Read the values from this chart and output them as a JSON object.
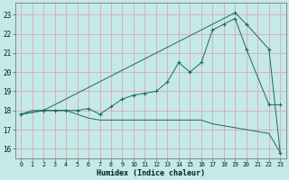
{
  "xlabel": "Humidex (Indice chaleur)",
  "bg_color": "#c5e8e8",
  "line_color": "#1a6b5a",
  "grid_color": "#dda0a0",
  "xlim": [
    -0.5,
    23.5
  ],
  "ylim": [
    15.5,
    23.6
  ],
  "yticks": [
    16,
    17,
    18,
    19,
    20,
    21,
    22,
    23
  ],
  "xticks": [
    0,
    1,
    2,
    3,
    4,
    5,
    6,
    7,
    8,
    9,
    10,
    11,
    12,
    13,
    14,
    15,
    16,
    17,
    18,
    19,
    20,
    21,
    22,
    23
  ],
  "line1_x": [
    0,
    1,
    2,
    3,
    4,
    5,
    6,
    7,
    8,
    9,
    10,
    11,
    12,
    13,
    14,
    15,
    16,
    17,
    18,
    19,
    20,
    21,
    22,
    23
  ],
  "line1_y": [
    17.8,
    18.0,
    18.0,
    18.0,
    18.0,
    17.8,
    17.6,
    17.5,
    17.5,
    17.5,
    17.5,
    17.5,
    17.5,
    17.5,
    17.5,
    17.5,
    17.5,
    17.3,
    17.2,
    17.1,
    17.0,
    16.9,
    16.8,
    15.8
  ],
  "line2_x": [
    0,
    2,
    3,
    4,
    5,
    6,
    7,
    8,
    9,
    10,
    11,
    12,
    13,
    14,
    15,
    16,
    17,
    18,
    19,
    20,
    22,
    23
  ],
  "line2_y": [
    17.8,
    18.0,
    18.0,
    18.0,
    18.0,
    18.1,
    17.8,
    18.2,
    18.6,
    18.8,
    18.9,
    19.0,
    19.5,
    20.5,
    20.0,
    20.5,
    22.2,
    22.5,
    22.8,
    21.2,
    18.3,
    18.3
  ],
  "line3_x": [
    0,
    2,
    19,
    20,
    22,
    23
  ],
  "line3_y": [
    17.8,
    18.0,
    23.1,
    22.5,
    21.2,
    15.8
  ]
}
